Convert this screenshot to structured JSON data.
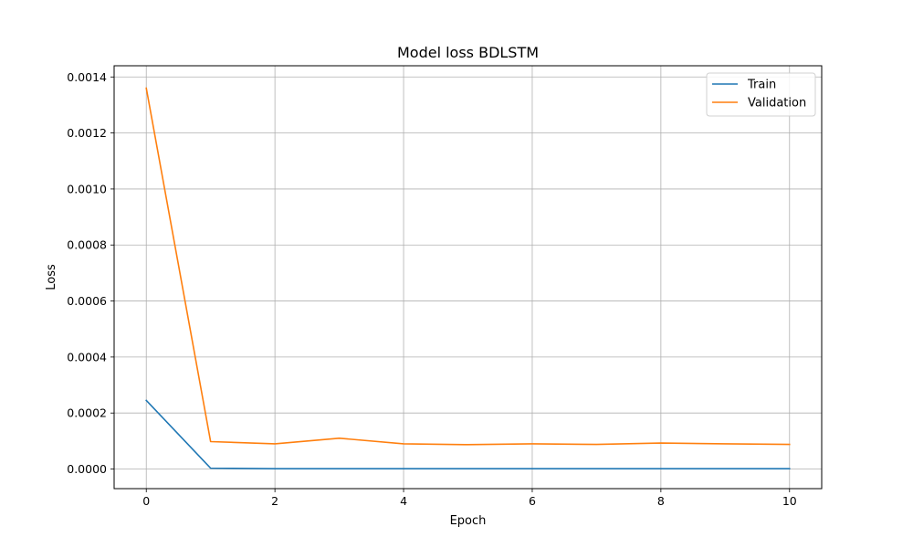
{
  "chart_data": {
    "type": "line",
    "title": "Model loss BDLSTM",
    "xlabel": "Epoch",
    "ylabel": "Loss",
    "x": [
      0,
      1,
      2,
      3,
      4,
      5,
      6,
      7,
      8,
      9,
      10
    ],
    "xlim": [
      -0.5,
      10.5
    ],
    "ylim": [
      -7e-05,
      0.00144
    ],
    "xticks": [
      0,
      2,
      4,
      6,
      8,
      10
    ],
    "xtick_labels": [
      "0",
      "2",
      "4",
      "6",
      "8",
      "10"
    ],
    "yticks": [
      0,
      0.0002,
      0.0004,
      0.0006,
      0.0008,
      0.001,
      0.0012,
      0.0014
    ],
    "ytick_labels": [
      "0.0000",
      "0.0002",
      "0.0004",
      "0.0006",
      "0.0008",
      "0.0010",
      "0.0012",
      "0.0014"
    ],
    "grid": true,
    "legend_position": "upper right",
    "series": [
      {
        "name": "Train",
        "color": "#1f77b4",
        "values": [
          0.000245,
          3e-06,
          1e-06,
          1e-06,
          1e-06,
          1e-06,
          1e-06,
          1e-06,
          1e-06,
          1e-06,
          1e-06
        ]
      },
      {
        "name": "Validation",
        "color": "#ff7f0e",
        "values": [
          0.00136,
          9.8e-05,
          9e-05,
          0.00011,
          9e-05,
          8.7e-05,
          9e-05,
          8.8e-05,
          9.3e-05,
          9e-05,
          8.8e-05
        ]
      }
    ]
  }
}
